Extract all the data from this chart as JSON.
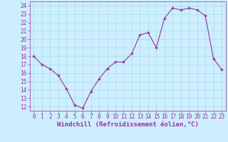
{
  "x": [
    0,
    1,
    2,
    3,
    4,
    5,
    6,
    7,
    8,
    9,
    10,
    11,
    12,
    13,
    14,
    15,
    16,
    17,
    18,
    19,
    20,
    21,
    22,
    23
  ],
  "y": [
    18,
    17,
    16.5,
    15.7,
    14.1,
    12.2,
    11.8,
    13.8,
    15.3,
    16.5,
    17.3,
    17.3,
    18.3,
    20.5,
    20.8,
    19.0,
    22.5,
    23.7,
    23.5,
    23.7,
    23.5,
    22.8,
    17.7,
    16.4
  ],
  "line_color": "#993399",
  "marker": "+",
  "marker_size": 3,
  "bg_color": "#cceeff",
  "grid_color": "#aadddd",
  "xlabel": "Windchill (Refroidissement éolien,°C)",
  "xlim": [
    -0.5,
    23.5
  ],
  "ylim": [
    11.5,
    24.5
  ],
  "yticks": [
    12,
    13,
    14,
    15,
    16,
    17,
    18,
    19,
    20,
    21,
    22,
    23,
    24
  ],
  "xticks": [
    0,
    1,
    2,
    3,
    4,
    5,
    6,
    7,
    8,
    9,
    10,
    11,
    12,
    13,
    14,
    15,
    16,
    17,
    18,
    19,
    20,
    21,
    22,
    23
  ],
  "xlabel_color": "#993399",
  "tick_color": "#993399",
  "label_fontsize": 6.5,
  "tick_fontsize": 5.5,
  "spine_color": "#993399",
  "linewidth": 0.8,
  "markeredgewidth": 1.0
}
